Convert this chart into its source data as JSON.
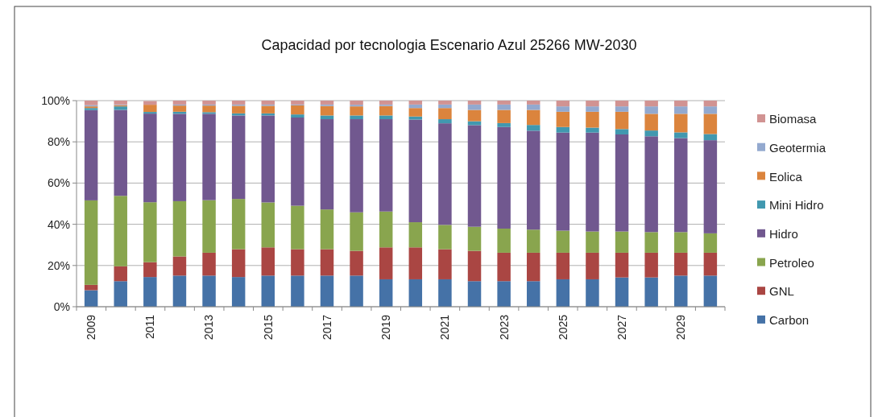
{
  "chart_data": {
    "type": "bar",
    "stacked": true,
    "title": "Capacidad por tecnologia Escenario Azul 25266 MW-2030",
    "categories": [
      "2009",
      null,
      "2011",
      null,
      "2013",
      null,
      "2015",
      null,
      "2017",
      null,
      "2019",
      null,
      "2021",
      null,
      "2023",
      null,
      "2025",
      null,
      "2027",
      null,
      "2029",
      null
    ],
    "series": [
      {
        "name": "Carbon",
        "color": "#4572a7",
        "values": [
          8,
          12.4,
          14.4,
          15.1,
          15.1,
          14.4,
          15.1,
          15.1,
          15.1,
          15.1,
          13.3,
          13.3,
          13.3,
          12.4,
          12.4,
          12.4,
          13.3,
          13.3,
          14.2,
          14.2,
          15.1,
          15.1
        ]
      },
      {
        "name": "GNL",
        "color": "#aa4643",
        "values": [
          2.6,
          7.2,
          7.2,
          9.3,
          11.1,
          13.5,
          13.7,
          12.8,
          12.8,
          12,
          15.5,
          15.5,
          14.6,
          14.7,
          13.8,
          13.8,
          12.9,
          12.9,
          12,
          12,
          11.1,
          11.1
        ]
      },
      {
        "name": "Petroleo",
        "color": "#89a54e",
        "values": [
          41,
          34.2,
          29.1,
          26.8,
          25.5,
          24.4,
          21.8,
          21.1,
          19.3,
          18.7,
          17.4,
          12.2,
          11.8,
          11.7,
          11.7,
          11.2,
          10.7,
          10.3,
          10.3,
          10,
          10,
          9.4
        ]
      },
      {
        "name": "Hidro",
        "color": "#71588f",
        "values": [
          43.8,
          41.7,
          43,
          42.4,
          41.9,
          40.5,
          42.2,
          42.8,
          43.8,
          45.2,
          44.8,
          49.8,
          49.3,
          49.3,
          49.3,
          48,
          47.6,
          48,
          47.1,
          46.5,
          45.6,
          45.2
        ]
      },
      {
        "name": "Mini Hidro",
        "color": "#4198af",
        "values": [
          1,
          1.7,
          0.8,
          1,
          0.8,
          1,
          1,
          1.5,
          1.8,
          1.8,
          1.8,
          1.5,
          2,
          1.9,
          1.9,
          2.8,
          2.7,
          2.4,
          2.6,
          2.8,
          2.8,
          3
        ]
      },
      {
        "name": "Eolica",
        "color": "#db843d",
        "values": [
          0.8,
          0.6,
          3.5,
          3,
          3.2,
          3.7,
          3.7,
          4.4,
          4.6,
          4.4,
          4.6,
          4.1,
          5.4,
          5.5,
          6.4,
          7.3,
          7.4,
          7.7,
          8.4,
          8.1,
          9,
          9.8
        ]
      },
      {
        "name": "Geotermia",
        "color": "#93a9cf",
        "values": [
          0.6,
          0.3,
          null,
          0.5,
          0.5,
          0.6,
          0.6,
          0.4,
          0.7,
          0.8,
          0.7,
          1.7,
          1.7,
          2.6,
          2.6,
          2.6,
          2.6,
          2.6,
          2.6,
          3.6,
          3.6,
          3.6
        ]
      },
      {
        "name": "Biomasa",
        "color": "#d19392",
        "values": [
          2.2,
          1.9,
          1.8,
          1.9,
          1.9,
          1.9,
          1.9,
          1.9,
          1.9,
          2,
          1.9,
          1.9,
          1.9,
          1.9,
          1.9,
          1.9,
          2.8,
          2.8,
          2.8,
          2.8,
          2.8,
          2.8
        ]
      }
    ],
    "ylim": [
      0,
      100
    ],
    "yticks": [
      {
        "value": 0,
        "label": "0%"
      },
      {
        "value": 20,
        "label": "20%"
      },
      {
        "value": 40,
        "label": "40%"
      },
      {
        "value": 60,
        "label": "60%"
      },
      {
        "value": 80,
        "label": "80%"
      },
      {
        "value": 100,
        "label": "100%"
      }
    ],
    "grid": "y",
    "legend": "right"
  }
}
